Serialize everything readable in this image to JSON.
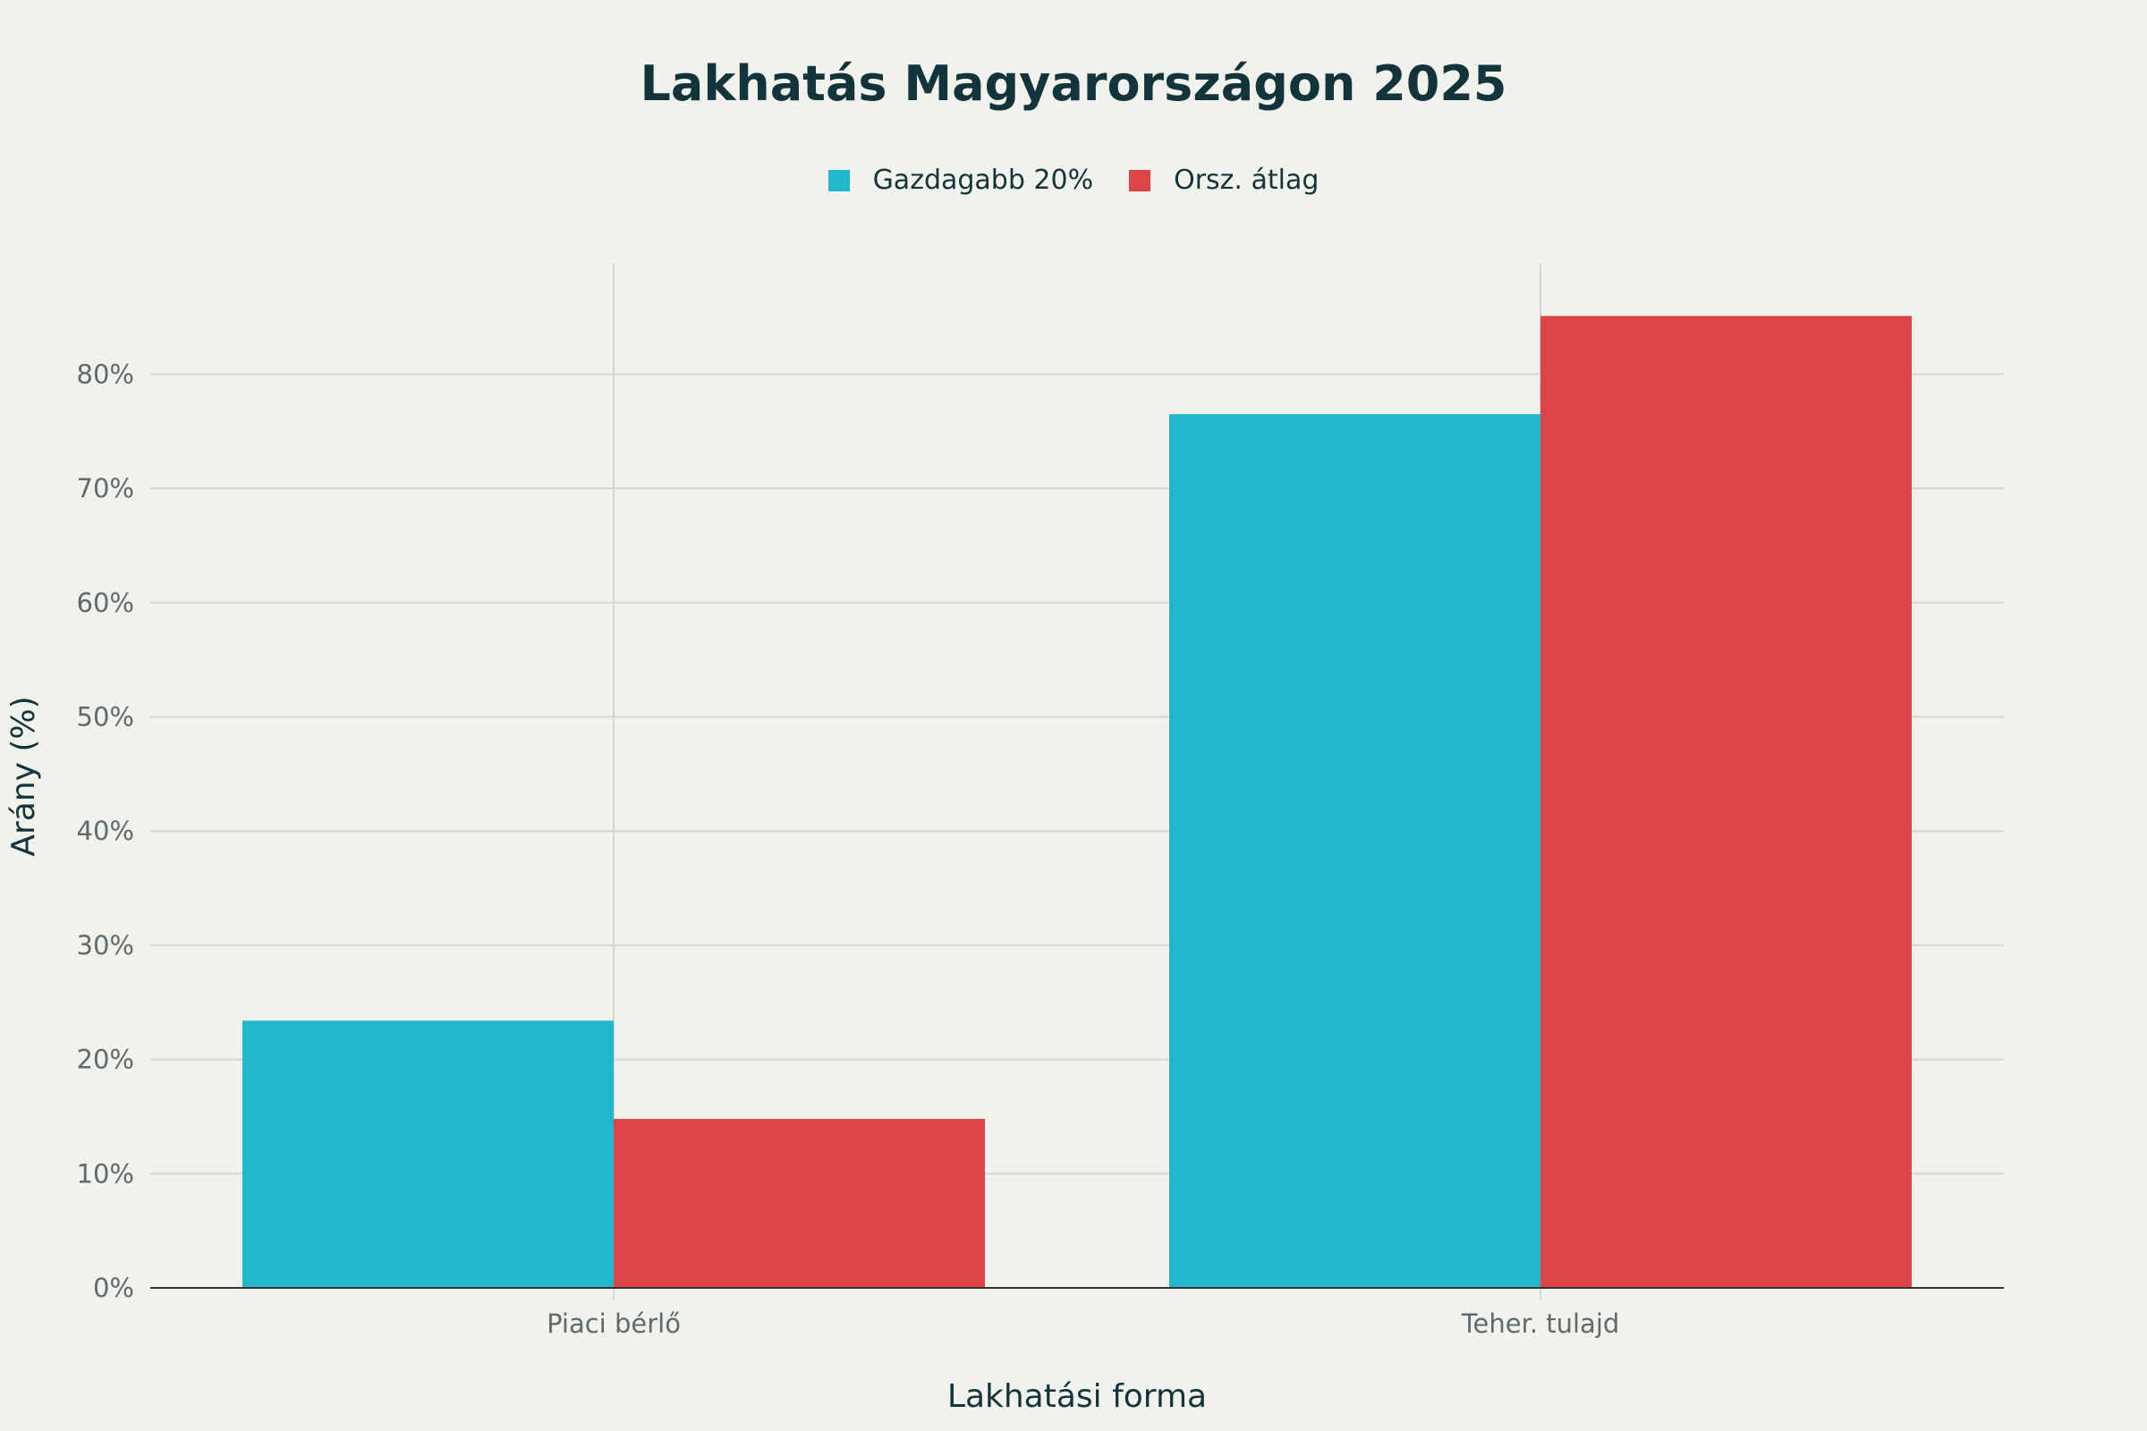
{
  "chart_data": {
    "type": "bar",
    "title": "Lakhatás Magyarországon 2025",
    "xlabel": "Lakhatási forma",
    "ylabel": "Arány (%)",
    "categories": [
      "Piaci bérlő",
      "Teher. tulajd"
    ],
    "series": [
      {
        "name": "Gazdagabb 20%",
        "color": "#21b8cd",
        "values": [
          23.4,
          76.5
        ]
      },
      {
        "name": "Orsz. átlag",
        "color": "#db4548",
        "values": [
          14.8,
          85.1
        ]
      }
    ],
    "ylim": [
      0,
      90
    ],
    "yticks": [
      0,
      10,
      20,
      30,
      40,
      50,
      60,
      70,
      80
    ],
    "ytick_labels": [
      "0%",
      "10%",
      "20%",
      "30%",
      "40%",
      "50%",
      "60%",
      "70%",
      "80%"
    ],
    "grid": true,
    "legend_position": "top-center"
  }
}
